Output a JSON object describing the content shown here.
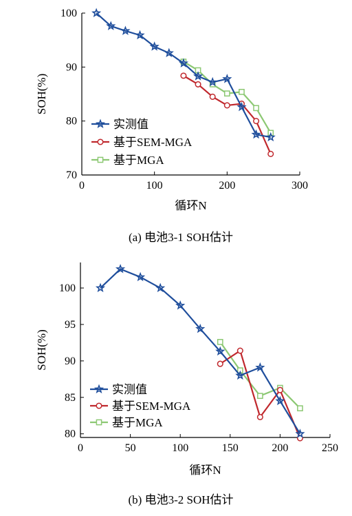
{
  "chart_data": [
    {
      "type": "line",
      "caption": "(a) 电池3-1 SOH估计",
      "xlabel": "循环N",
      "ylabel": "SOH(%)",
      "xlim": [
        0,
        300
      ],
      "ylim": [
        70,
        100
      ],
      "xticks": [
        "0",
        "100",
        "200",
        "300"
      ],
      "yticks": [
        "70",
        "80",
        "90",
        "100"
      ],
      "legend_position": "lower-left",
      "series": [
        {
          "name": "实测值",
          "color": "#1f4e9c",
          "marker": "star",
          "points": [
            [
              20,
              100.0
            ],
            [
              40,
              97.6
            ],
            [
              60,
              96.7
            ],
            [
              80,
              95.9
            ],
            [
              100,
              93.8
            ],
            [
              120,
              92.6
            ],
            [
              140,
              90.7
            ],
            [
              160,
              88.3
            ],
            [
              180,
              87.2
            ],
            [
              200,
              87.8
            ],
            [
              220,
              82.6
            ],
            [
              240,
              77.5
            ],
            [
              260,
              77.0
            ]
          ]
        },
        {
          "name": "基于SEM-MGA",
          "color": "#c0282d",
          "marker": "circle",
          "points": [
            [
              140,
              88.4
            ],
            [
              160,
              86.8
            ],
            [
              180,
              84.5
            ],
            [
              200,
              82.9
            ],
            [
              220,
              83.2
            ],
            [
              240,
              80.0
            ],
            [
              260,
              73.9
            ]
          ]
        },
        {
          "name": "基于MGA",
          "color": "#8cc873",
          "marker": "square",
          "points": [
            [
              140,
              91.0
            ],
            [
              160,
              89.4
            ],
            [
              180,
              86.8
            ],
            [
              200,
              85.1
            ],
            [
              220,
              85.4
            ],
            [
              240,
              82.4
            ],
            [
              260,
              77.8
            ]
          ]
        }
      ]
    },
    {
      "type": "line",
      "caption": "(b) 电池3-2 SOH估计",
      "xlabel": "循环N",
      "ylabel": "SOH(%)",
      "xlim": [
        0,
        250
      ],
      "ylim": [
        79.5,
        103.5
      ],
      "xticks": [
        "0",
        "50",
        "100",
        "150",
        "200",
        "250"
      ],
      "yticks": [
        "80",
        "85",
        "90",
        "95",
        "100"
      ],
      "legend_position": "lower-left",
      "series": [
        {
          "name": "实测值",
          "color": "#1f4e9c",
          "marker": "star",
          "points": [
            [
              20,
              100.0
            ],
            [
              40,
              102.6
            ],
            [
              60,
              101.5
            ],
            [
              80,
              100.0
            ],
            [
              100,
              97.6
            ],
            [
              120,
              94.4
            ],
            [
              140,
              91.3
            ],
            [
              160,
              88.0
            ],
            [
              180,
              89.1
            ],
            [
              200,
              84.5
            ],
            [
              220,
              80.0
            ]
          ]
        },
        {
          "name": "基于SEM-MGA",
          "color": "#c0282d",
          "marker": "circle",
          "points": [
            [
              140,
              89.6
            ],
            [
              160,
              91.4
            ],
            [
              180,
              82.3
            ],
            [
              200,
              86.0
            ],
            [
              220,
              79.4
            ]
          ]
        },
        {
          "name": "基于MGA",
          "color": "#8cc873",
          "marker": "square",
          "points": [
            [
              140,
              92.6
            ],
            [
              160,
              88.7
            ],
            [
              180,
              85.2
            ],
            [
              200,
              86.3
            ],
            [
              220,
              83.5
            ]
          ]
        }
      ]
    }
  ]
}
